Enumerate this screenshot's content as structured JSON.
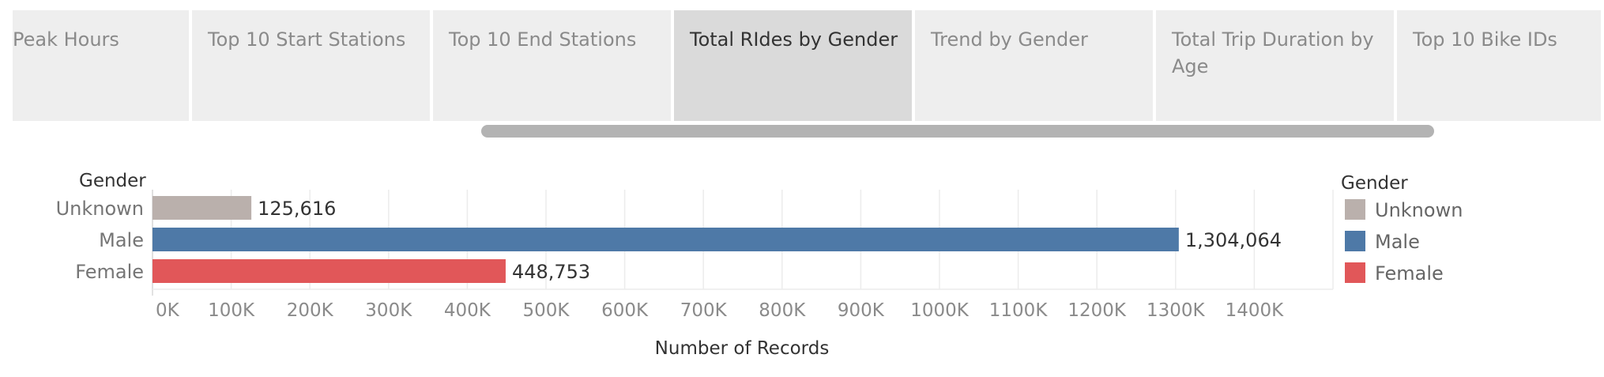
{
  "tabs": [
    {
      "label": "Peak Hours",
      "active": false
    },
    {
      "label": "Top 10 Start Stations",
      "active": false
    },
    {
      "label": "Top 10 End Stations",
      "active": false
    },
    {
      "label": "Total RIdes by Gender",
      "active": true
    },
    {
      "label": "Trend by Gender",
      "active": false
    },
    {
      "label": "Total Trip Duration by Age",
      "active": false
    },
    {
      "label": "Top 10 Bike IDs",
      "active": false
    }
  ],
  "chart_data": {
    "type": "bar",
    "orientation": "horizontal",
    "row_header": "Gender",
    "categories": [
      "Unknown",
      "Male",
      "Female"
    ],
    "values": [
      125616,
      1304064,
      448753
    ],
    "value_labels": [
      "125,616",
      "1,304,064",
      "448,753"
    ],
    "colors": [
      "#bab0ac",
      "#4e79a7",
      "#e15759"
    ],
    "xlabel": "Number of Records",
    "x_ticks": [
      0,
      100000,
      200000,
      300000,
      400000,
      500000,
      600000,
      700000,
      800000,
      900000,
      1000000,
      1100000,
      1200000,
      1300000,
      1400000
    ],
    "x_tick_labels": [
      "0K",
      "100K",
      "200K",
      "300K",
      "400K",
      "500K",
      "600K",
      "700K",
      "800K",
      "900K",
      "1000K",
      "1100K",
      "1200K",
      "1300K",
      "1400K"
    ],
    "xlim": [
      0,
      1500000
    ],
    "grid": true,
    "legend": {
      "title": "Gender",
      "position": "right",
      "items": [
        {
          "label": "Unknown",
          "color": "#bab0ac"
        },
        {
          "label": "Male",
          "color": "#4e79a7"
        },
        {
          "label": "Female",
          "color": "#e15759"
        }
      ]
    }
  }
}
